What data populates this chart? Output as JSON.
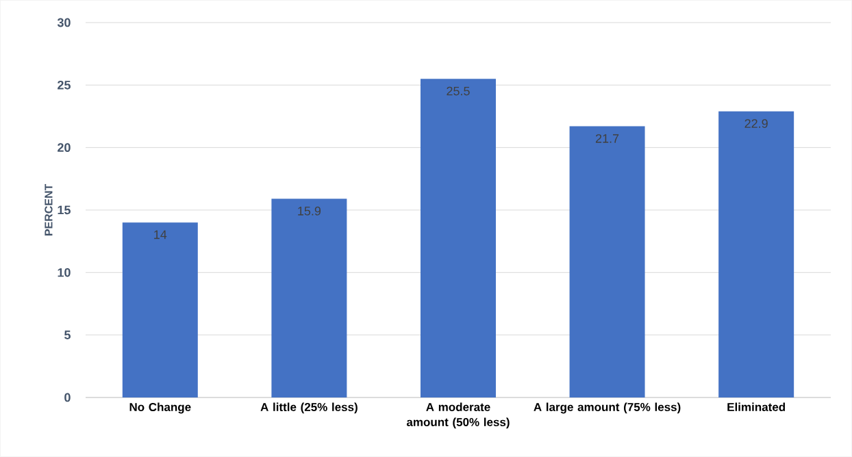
{
  "chart_data": {
    "type": "bar",
    "ylabel": "PERCENT",
    "categories": [
      "No Change",
      "A little (25% less)",
      "A moderate amount (50% less)",
      "A large amount (75% less)",
      "Eliminated"
    ],
    "values": [
      14,
      15.9,
      25.5,
      21.7,
      22.9
    ],
    "color": "#4472c4",
    "ylim": [
      0,
      30
    ],
    "yticks": [
      0,
      5,
      10,
      15,
      20,
      25,
      30
    ],
    "grid": "y",
    "data_labels": true
  }
}
